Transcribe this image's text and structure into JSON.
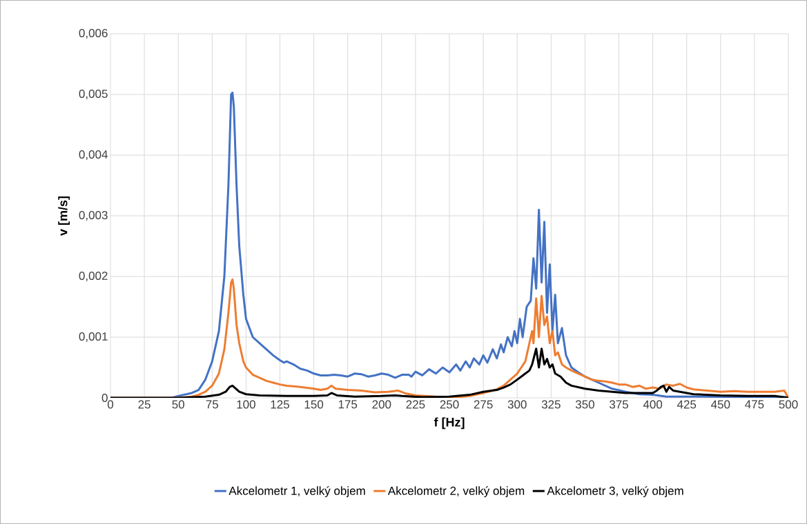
{
  "chart_data": {
    "type": "line",
    "xlabel": "f [Hz]",
    "ylabel": "v [m/s]",
    "xlim": [
      0,
      500
    ],
    "ylim": [
      0,
      0.006
    ],
    "xticks": [
      0,
      25,
      50,
      75,
      100,
      125,
      150,
      175,
      200,
      225,
      250,
      275,
      300,
      325,
      350,
      375,
      400,
      425,
      450,
      475,
      500
    ],
    "yticks": [
      0,
      {
        "value": 0.001,
        "label": "0,001"
      },
      {
        "value": 0.002,
        "label": "0,002"
      },
      {
        "value": 0.003,
        "label": "0,003"
      },
      {
        "value": 0.004,
        "label": "0,004"
      },
      {
        "value": 0.005,
        "label": "0,005"
      },
      {
        "value": 0.006,
        "label": "0,006"
      }
    ],
    "grid": true,
    "legend": "bottom",
    "series": [
      {
        "name": "Akcelometr 1, velký objem",
        "color": "#4472c4",
        "x": [
          0,
          10,
          45,
          50,
          60,
          65,
          70,
          75,
          80,
          84,
          87,
          89,
          90,
          91,
          93,
          95,
          98,
          100,
          105,
          110,
          115,
          120,
          125,
          128,
          130,
          135,
          140,
          145,
          150,
          155,
          160,
          165,
          170,
          175,
          180,
          185,
          190,
          195,
          200,
          205,
          210,
          215,
          220,
          222,
          225,
          230,
          235,
          240,
          245,
          250,
          255,
          258,
          262,
          265,
          268,
          272,
          275,
          278,
          282,
          285,
          288,
          290,
          293,
          296,
          298,
          300,
          302,
          304,
          307,
          310,
          312,
          314,
          316,
          318,
          320,
          322,
          324,
          326,
          328,
          330,
          333,
          336,
          340,
          345,
          350,
          360,
          370,
          380,
          390,
          400,
          410,
          430,
          500
        ],
        "values": [
          0,
          0,
          0,
          3e-05,
          8e-05,
          0.00013,
          0.0003,
          0.0006,
          0.0011,
          0.002,
          0.0035,
          0.005,
          0.00503,
          0.0048,
          0.0035,
          0.0025,
          0.0017,
          0.0013,
          0.001,
          0.0009,
          0.0008,
          0.0007,
          0.00062,
          0.00058,
          0.0006,
          0.00055,
          0.00048,
          0.00045,
          0.0004,
          0.00037,
          0.00037,
          0.00038,
          0.00037,
          0.00035,
          0.0004,
          0.00039,
          0.00035,
          0.00037,
          0.0004,
          0.00038,
          0.00033,
          0.00038,
          0.00038,
          0.00035,
          0.00043,
          0.00037,
          0.00047,
          0.0004,
          0.0005,
          0.00042,
          0.00055,
          0.00045,
          0.0006,
          0.0005,
          0.00065,
          0.00055,
          0.0007,
          0.00058,
          0.0008,
          0.00065,
          0.00088,
          0.00075,
          0.001,
          0.00085,
          0.0011,
          0.0009,
          0.0013,
          0.001,
          0.0015,
          0.0016,
          0.0023,
          0.0018,
          0.0031,
          0.0019,
          0.0029,
          0.0014,
          0.0022,
          0.0011,
          0.0017,
          0.0009,
          0.00115,
          0.0007,
          0.0005,
          0.00042,
          0.00035,
          0.00025,
          0.00015,
          0.0001,
          6e-05,
          5e-05,
          2e-05,
          2e-05,
          1e-05
        ]
      },
      {
        "name": "Akcelometr 2, velký objem",
        "color": "#ed7d31",
        "x": [
          0,
          50,
          60,
          65,
          70,
          75,
          80,
          84,
          87,
          89,
          90,
          91,
          93,
          95,
          98,
          100,
          105,
          110,
          115,
          120,
          125,
          130,
          135,
          140,
          150,
          155,
          160,
          163,
          166,
          175,
          185,
          195,
          205,
          212,
          218,
          225,
          240,
          255,
          265,
          275,
          285,
          290,
          295,
          300,
          303,
          306,
          309,
          311,
          312,
          314,
          316,
          318,
          320,
          322,
          324,
          326,
          328,
          330,
          333,
          336,
          340,
          345,
          350,
          355,
          360,
          365,
          370,
          375,
          380,
          385,
          390,
          395,
          400,
          405,
          410,
          415,
          420,
          425,
          430,
          440,
          450,
          460,
          470,
          480,
          490,
          497,
          500
        ],
        "values": [
          0,
          0,
          2e-05,
          5e-05,
          0.0001,
          0.0002,
          0.0004,
          0.0008,
          0.0014,
          0.0019,
          0.00195,
          0.0018,
          0.0012,
          0.0009,
          0.0006,
          0.0005,
          0.00038,
          0.00033,
          0.00028,
          0.00025,
          0.00022,
          0.0002,
          0.00019,
          0.00018,
          0.00015,
          0.00013,
          0.00015,
          0.0002,
          0.00015,
          0.00013,
          0.00012,
          9e-05,
          0.0001,
          0.00012,
          7e-05,
          4e-05,
          2e-05,
          1e-05,
          3e-05,
          8e-05,
          0.00014,
          0.0002,
          0.0003,
          0.0004,
          0.0005,
          0.0006,
          0.0009,
          0.0011,
          0.0009,
          0.00164,
          0.001,
          0.00168,
          0.0012,
          0.00134,
          0.0009,
          0.0011,
          0.0007,
          0.00075,
          0.00055,
          0.0005,
          0.00045,
          0.0004,
          0.00035,
          0.0003,
          0.00028,
          0.00027,
          0.00025,
          0.00022,
          0.00022,
          0.00018,
          0.0002,
          0.00015,
          0.00017,
          0.00015,
          0.00022,
          0.0002,
          0.00023,
          0.00017,
          0.00014,
          0.00012,
          0.0001,
          0.00011,
          0.0001,
          0.0001,
          0.0001,
          0.00012,
          0
        ]
      },
      {
        "name": "Akcelometr 3, velký objem",
        "color": "#000000",
        "x": [
          0,
          50,
          70,
          80,
          85,
          88,
          90,
          92,
          95,
          100,
          110,
          130,
          150,
          160,
          163,
          167,
          180,
          200,
          210,
          215,
          230,
          250,
          265,
          275,
          285,
          290,
          295,
          300,
          303,
          306,
          309,
          311,
          314,
          316,
          318,
          320,
          322,
          324,
          326,
          328,
          332,
          336,
          340,
          350,
          360,
          370,
          380,
          390,
          400,
          403,
          406,
          408,
          410,
          412,
          415,
          420,
          430,
          450,
          470,
          490,
          500
        ],
        "values": [
          0,
          0,
          2e-05,
          5e-05,
          0.0001,
          0.00018,
          0.0002,
          0.00016,
          0.0001,
          6e-05,
          4e-05,
          3e-05,
          3e-05,
          4e-05,
          8e-05,
          4e-05,
          2e-05,
          3e-05,
          4e-05,
          3e-05,
          1e-05,
          2e-05,
          5e-05,
          0.0001,
          0.00013,
          0.00017,
          0.00022,
          0.0003,
          0.00035,
          0.0004,
          0.00045,
          0.00055,
          0.00081,
          0.0005,
          0.00081,
          0.00055,
          0.00064,
          0.0005,
          0.00055,
          0.0004,
          0.00035,
          0.00025,
          0.0002,
          0.00015,
          0.00012,
          0.0001,
          8e-05,
          8e-05,
          8e-05,
          0.00012,
          0.00018,
          0.0002,
          0.0001,
          0.00018,
          0.00012,
          0.0001,
          6e-05,
          4e-05,
          3e-05,
          3e-05,
          0
        ]
      }
    ]
  }
}
